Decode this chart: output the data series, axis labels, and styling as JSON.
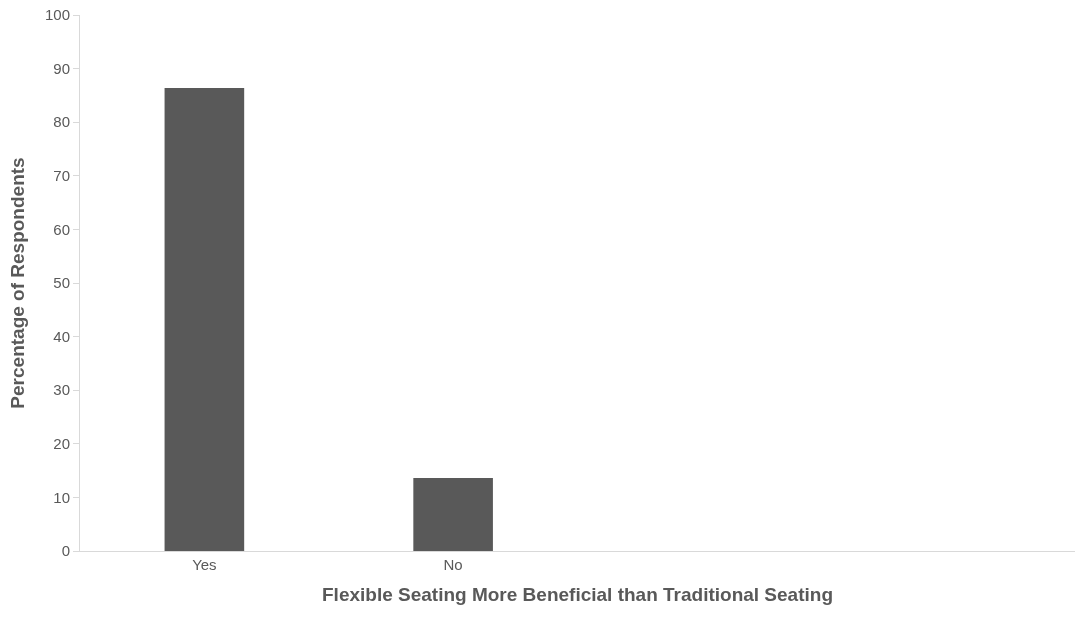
{
  "chart_data": {
    "type": "bar",
    "xlabel": "Flexible Seating More Beneficial than Traditional Seating",
    "ylabel": "Percentage of Respondents",
    "categories": [
      "Yes",
      "No",
      null,
      null
    ],
    "values": [
      86.4,
      13.6,
      null,
      null
    ],
    "color": "#595959",
    "ylim": [
      0,
      100
    ],
    "yticks": [
      0,
      10,
      20,
      30,
      40,
      50,
      60,
      70,
      80,
      90,
      100
    ],
    "grid": false
  }
}
